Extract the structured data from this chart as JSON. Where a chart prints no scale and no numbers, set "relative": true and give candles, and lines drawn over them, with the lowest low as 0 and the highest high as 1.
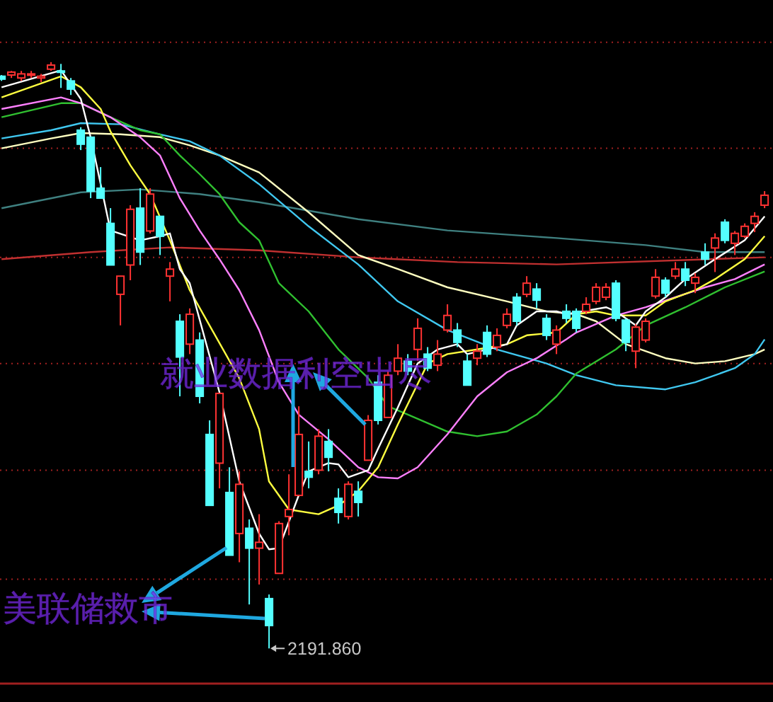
{
  "chart_data": {
    "type": "candlestick",
    "relative": true,
    "categories": [
      null,
      null,
      null,
      null,
      null,
      null,
      null,
      null,
      null,
      null,
      null,
      null,
      null,
      null,
      null,
      null,
      null,
      null,
      null,
      null,
      null,
      null,
      null,
      null,
      null,
      null,
      null,
      null,
      null,
      null,
      null,
      null,
      null,
      null,
      null,
      null,
      null,
      null,
      null,
      null,
      null,
      null,
      null,
      null,
      null,
      null,
      null,
      null,
      null,
      null,
      null,
      null,
      null,
      null,
      null,
      null,
      null,
      null,
      null,
      null,
      null,
      null,
      null,
      null,
      null,
      null,
      null,
      null,
      null,
      null,
      null,
      null,
      null,
      null,
      null,
      null,
      null,
      null
    ],
    "ohlc": [
      [
        0.976,
        0.978,
        0.968,
        0.971
      ],
      [
        0.978,
        0.985,
        0.973,
        0.983
      ],
      [
        0.973,
        0.985,
        0.968,
        0.98
      ],
      [
        0.978,
        0.985,
        0.973,
        0.98
      ],
      [
        0.973,
        0.98,
        0.966,
        0.976
      ],
      [
        0.988,
        1.0,
        0.985,
        0.995
      ],
      [
        0.985,
        0.997,
        0.956,
        0.983
      ],
      [
        0.968,
        0.973,
        0.944,
        0.954
      ],
      [
        0.884,
        0.889,
        0.85,
        0.86
      ],
      [
        0.872,
        0.872,
        0.768,
        0.78
      ],
      [
        0.785,
        0.821,
        0.768,
        0.768
      ],
      [
        0.725,
        0.751,
        0.654,
        0.654
      ],
      [
        0.604,
        0.635,
        0.551,
        0.635
      ],
      [
        0.654,
        0.756,
        0.628,
        0.749
      ],
      [
        0.751,
        0.785,
        0.654,
        0.676
      ],
      [
        0.712,
        0.785,
        0.708,
        0.775
      ],
      [
        0.737,
        0.737,
        0.671,
        0.703
      ],
      [
        0.635,
        0.659,
        0.592,
        0.647
      ],
      [
        0.558,
        0.57,
        0.43,
        0.497
      ],
      [
        0.519,
        0.58,
        0.502,
        0.57
      ],
      [
        0.526,
        0.539,
        0.418,
        0.43
      ],
      [
        0.365,
        0.389,
        0.244,
        0.244
      ],
      [
        0.316,
        0.435,
        0.273,
        0.435
      ],
      [
        0.266,
        0.309,
        0.159,
        0.159
      ],
      [
        0.196,
        0.302,
        0.147,
        0.28
      ],
      [
        0.205,
        0.22,
        0.075,
        0.171
      ],
      [
        0.171,
        0.229,
        0.109,
        0.181
      ],
      [
        0.085,
        0.092,
        0.0,
        0.039
      ],
      [
        0.128,
        0.217,
        0.128,
        0.213
      ],
      [
        0.225,
        0.297,
        0.193,
        0.237
      ],
      [
        0.261,
        0.413,
        0.261,
        0.365
      ],
      [
        0.302,
        0.353,
        0.273,
        0.292
      ],
      [
        0.304,
        0.374,
        0.297,
        0.362
      ],
      [
        0.353,
        0.374,
        0.302,
        0.326
      ],
      [
        0.256,
        0.273,
        0.213,
        0.232
      ],
      [
        0.225,
        0.285,
        0.22,
        0.28
      ],
      [
        0.268,
        0.285,
        0.225,
        0.249
      ],
      [
        0.321,
        0.398,
        0.321,
        0.389
      ],
      [
        0.454,
        0.466,
        0.382,
        0.389
      ],
      [
        0.394,
        0.473,
        0.394,
        0.466
      ],
      [
        0.473,
        0.519,
        0.466,
        0.495
      ],
      [
        0.49,
        0.502,
        0.466,
        0.473
      ],
      [
        0.51,
        0.563,
        0.49,
        0.546
      ],
      [
        0.502,
        0.514,
        0.473,
        0.478
      ],
      [
        0.483,
        0.526,
        0.473,
        0.502
      ],
      [
        0.543,
        0.587,
        0.539,
        0.568
      ],
      [
        0.543,
        0.555,
        0.514,
        0.522
      ],
      [
        0.49,
        0.502,
        0.449,
        0.449
      ],
      [
        0.495,
        0.519,
        0.483,
        0.507
      ],
      [
        0.539,
        0.551,
        0.497,
        0.502
      ],
      [
        0.514,
        0.546,
        0.507,
        0.534
      ],
      [
        0.551,
        0.58,
        0.546,
        0.57
      ],
      [
        0.599,
        0.606,
        0.551,
        0.558
      ],
      [
        0.604,
        0.635,
        0.599,
        0.623
      ],
      [
        0.613,
        0.623,
        0.58,
        0.594
      ],
      [
        0.563,
        0.57,
        0.526,
        0.534
      ],
      [
        0.519,
        0.551,
        0.502,
        0.543
      ],
      [
        0.575,
        0.587,
        0.555,
        0.563
      ],
      [
        0.575,
        0.58,
        0.539,
        0.546
      ],
      [
        0.575,
        0.599,
        0.57,
        0.587
      ],
      [
        0.592,
        0.623,
        0.587,
        0.616
      ],
      [
        0.599,
        0.623,
        0.594,
        0.616
      ],
      [
        0.623,
        0.628,
        0.558,
        0.563
      ],
      [
        0.56,
        0.563,
        0.507,
        0.522
      ],
      [
        0.507,
        0.553,
        0.478,
        0.548
      ],
      [
        0.526,
        0.563,
        0.522,
        0.558
      ],
      [
        0.601,
        0.647,
        0.597,
        0.633
      ],
      [
        0.628,
        0.633,
        0.599,
        0.606
      ],
      [
        0.635,
        0.659,
        0.63,
        0.647
      ],
      [
        0.647,
        0.659,
        0.618,
        0.628
      ],
      [
        0.623,
        0.64,
        0.606,
        0.633
      ],
      [
        0.676,
        0.691,
        0.654,
        0.664
      ],
      [
        0.683,
        0.708,
        0.642,
        0.7
      ],
      [
        0.727,
        0.732,
        0.691,
        0.696
      ],
      [
        0.691,
        0.712,
        0.671,
        0.708
      ],
      [
        0.703,
        0.725,
        0.7,
        0.72
      ],
      [
        0.725,
        0.744,
        0.71,
        0.737
      ],
      [
        0.756,
        0.78,
        0.751,
        0.773
      ]
    ],
    "colors": [
      "#54ffff",
      "#ff3232",
      "#ff3232",
      "#ff3232",
      "#ff3232",
      "#ff3232",
      "#54ffff",
      "#54ffff",
      "#54ffff",
      "#54ffff",
      "#54ffff",
      "#54ffff",
      "#ff3232",
      "#ff3232",
      "#54ffff",
      "#ff3232",
      "#54ffff",
      "#ff3232",
      "#54ffff",
      "#ff3232",
      "#54ffff",
      "#54ffff",
      "#ff3232",
      "#54ffff",
      "#ff3232",
      "#54ffff",
      "#ff3232",
      "#54ffff",
      "#ff3232",
      "#ff3232",
      "#ff3232",
      "#54ffff",
      "#ff3232",
      "#54ffff",
      "#54ffff",
      "#ff3232",
      "#54ffff",
      "#ff3232",
      "#54ffff",
      "#ff3232",
      "#ff3232",
      "#54ffff",
      "#ff3232",
      "#54ffff",
      "#ff3232",
      "#ff3232",
      "#54ffff",
      "#54ffff",
      "#ff3232",
      "#54ffff",
      "#ff3232",
      "#ff3232",
      "#54ffff",
      "#ff3232",
      "#54ffff",
      "#54ffff",
      "#ff3232",
      "#54ffff",
      "#54ffff",
      "#ff3232",
      "#ff3232",
      "#ff3232",
      "#54ffff",
      "#54ffff",
      "#ff3232",
      "#ff3232",
      "#ff3232",
      "#54ffff",
      "#ff3232",
      "#54ffff",
      "#ff3232",
      "#54ffff",
      "#ff3232",
      "#54ffff",
      "#ff3232",
      "#ff3232",
      "#ff3232",
      "#ff3232"
    ],
    "series": [
      {
        "type": "line",
        "color": "#c03030",
        "values": [
          0.664,
          null,
          null,
          null,
          null,
          null,
          null,
          null,
          null,
          0.676,
          null,
          null,
          null,
          null,
          null,
          null,
          null,
          0.684,
          null,
          null,
          null,
          null,
          null,
          null,
          null,
          null,
          0.679,
          null,
          null,
          null,
          null,
          null,
          null,
          null,
          null,
          null,
          0.667,
          null,
          null,
          null,
          null,
          null,
          null,
          null,
          null,
          null,
          0.659,
          null,
          null,
          null,
          null,
          null,
          null,
          null,
          null,
          null,
          0.655,
          null,
          null,
          null,
          null,
          null,
          null,
          null,
          null,
          null,
          null,
          null,
          null,
          null,
          null,
          null,
          null,
          null,
          null,
          null,
          null,
          0.667
        ]
      },
      {
        "type": "line",
        "color": "#3f8080",
        "values": [
          0.751,
          null,
          null,
          null,
          null,
          null,
          null,
          null,
          0.778,
          null,
          null,
          null,
          null,
          null,
          0.783,
          null,
          null,
          null,
          null,
          null,
          0.775,
          null,
          null,
          null,
          null,
          null,
          0.761,
          null,
          null,
          null,
          null,
          null,
          null,
          null,
          null,
          null,
          0.732,
          null,
          null,
          null,
          null,
          null,
          null,
          null,
          null,
          0.713,
          null,
          null,
          null,
          null,
          null,
          null,
          null,
          null,
          null,
          null,
          0.7,
          null,
          null,
          null,
          null,
          null,
          null,
          null,
          null,
          0.688,
          null,
          null,
          null,
          null,
          null,
          0.676,
          null,
          null,
          null,
          null,
          null,
          0.676
        ]
      },
      {
        "type": "line",
        "color": "#ffffc0",
        "values": [
          0.853,
          null,
          null,
          null,
          null,
          0.87,
          null,
          null,
          0.879,
          null,
          null,
          null,
          0.877,
          null,
          null,
          null,
          0.872,
          null,
          null,
          0.858,
          null,
          null,
          0.841,
          null,
          null,
          null,
          0.812,
          null,
          null,
          null,
          null,
          0.744,
          null,
          null,
          null,
          null,
          0.671,
          null,
          null,
          null,
          0.647,
          null,
          null,
          null,
          null,
          0.616,
          null,
          null,
          null,
          null,
          null,
          0.592,
          null,
          null,
          null,
          0.575,
          null,
          null,
          0.57,
          null,
          0.558,
          null,
          null,
          0.519,
          null,
          null,
          null,
          0.495,
          null,
          null,
          0.486,
          null,
          null,
          0.49,
          null,
          null,
          0.502,
          0.51
        ]
      },
      {
        "type": "line",
        "color": "#40c8f0",
        "values": [
          0.87,
          null,
          null,
          null,
          null,
          0.884,
          null,
          null,
          0.896,
          null,
          null,
          null,
          0.894,
          null,
          null,
          null,
          0.877,
          null,
          null,
          0.865,
          null,
          null,
          0.841,
          null,
          null,
          null,
          0.792,
          null,
          null,
          null,
          null,
          0.72,
          null,
          null,
          null,
          null,
          0.655,
          null,
          null,
          null,
          0.592,
          null,
          null,
          null,
          null,
          0.543,
          null,
          null,
          null,
          null,
          0.51,
          null,
          null,
          null,
          null,
          0.486,
          null,
          null,
          0.466,
          null,
          null,
          null,
          0.449,
          null,
          null,
          null,
          null,
          0.442,
          null,
          null,
          0.454,
          null,
          null,
          null,
          0.478,
          null,
          0.502,
          0.527
        ]
      },
      {
        "type": "line",
        "color": "#30c030",
        "values": [
          0.906,
          null,
          null,
          null,
          null,
          null,
          0.93,
          null,
          0.93,
          null,
          null,
          0.906,
          null,
          null,
          0.884,
          null,
          0.877,
          null,
          0.841,
          null,
          0.809,
          null,
          0.775,
          null,
          0.727,
          null,
          0.696,
          null,
          0.623,
          null,
          null,
          0.575,
          null,
          null,
          0.51,
          null,
          null,
          0.461,
          null,
          0.413,
          null,
          0.399,
          null,
          null,
          null,
          0.37,
          null,
          null,
          0.362,
          null,
          null,
          0.37,
          null,
          null,
          0.399,
          null,
          0.43,
          null,
          0.469,
          null,
          null,
          null,
          0.51,
          null,
          null,
          0.551,
          null,
          null,
          null,
          0.582,
          null,
          null,
          null,
          0.616,
          null,
          null,
          null,
          0.643
        ]
      },
      {
        "type": "line",
        "color": "#ff80ff",
        "values": [
          0.92,
          null,
          null,
          null,
          null,
          null,
          0.94,
          null,
          0.93,
          null,
          null,
          0.906,
          null,
          null,
          0.872,
          null,
          0.841,
          null,
          0.768,
          null,
          0.713,
          null,
          0.664,
          null,
          0.611,
          null,
          0.543,
          null,
          0.454,
          null,
          0.399,
          null,
          null,
          0.357,
          null,
          null,
          0.309,
          null,
          0.292,
          null,
          0.29,
          null,
          0.309,
          null,
          null,
          0.365,
          null,
          null,
          0.43,
          null,
          null,
          0.471,
          null,
          null,
          0.495,
          null,
          null,
          0.527,
          0.539,
          null,
          null,
          null,
          0.568,
          null,
          null,
          0.582,
          null,
          null,
          0.599,
          null,
          null,
          0.616,
          null,
          null,
          0.63,
          null,
          null,
          0.655
        ]
      },
      {
        "type": "line",
        "color": "#ffff40",
        "values": [
          0.94,
          null,
          null,
          null,
          null,
          null,
          0.976,
          null,
          0.957,
          null,
          0.92,
          0.882,
          null,
          0.824,
          null,
          0.775,
          null,
          0.696,
          null,
          0.611,
          null,
          0.551,
          null,
          null,
          0.461,
          null,
          0.374,
          0.285,
          null,
          0.237,
          null,
          null,
          0.229,
          null,
          0.244,
          null,
          0.268,
          null,
          0.309,
          null,
          0.382,
          null,
          null,
          0.486,
          null,
          0.502,
          null,
          null,
          0.51,
          null,
          null,
          0.519,
          null,
          0.534,
          null,
          null,
          0.539,
          null,
          0.57,
          null,
          0.575,
          null,
          0.568,
          null,
          null,
          0.568,
          null,
          0.592,
          null,
          null,
          0.611,
          null,
          0.63,
          null,
          null,
          0.664,
          null,
          0.703
        ]
      },
      {
        "type": "line",
        "color": "#ffffff",
        "values": [
          0.957,
          null,
          null,
          null,
          null,
          null,
          0.986,
          null,
          0.937,
          0.872,
          0.792,
          0.713,
          null,
          null,
          0.696,
          null,
          0.703,
          0.708,
          0.647,
          0.623,
          null,
          null,
          0.437,
          null,
          0.285,
          null,
          0.196,
          0.169,
          0.171,
          null,
          0.261,
          0.302,
          null,
          0.316,
          0.314,
          0.292,
          null,
          0.304,
          0.341,
          null,
          0.411,
          null,
          0.486,
          null,
          0.51,
          null,
          0.519,
          0.502,
          null,
          0.51,
          null,
          0.519,
          0.551,
          null,
          0.575,
          null,
          0.575,
          0.57,
          null,
          null,
          null,
          0.582,
          0.575,
          null,
          0.551,
          0.575,
          null,
          0.599,
          null,
          0.63,
          null,
          null,
          0.664,
          null,
          null,
          0.696,
          null,
          0.737
        ]
      }
    ],
    "ref_lines": [
      {
        "axis": "y",
        "value": 1.034,
        "color": "#a02020",
        "line_style": "dotted"
      },
      {
        "axis": "y",
        "value": 0.853,
        "color": "#a02020",
        "line_style": "dotted"
      },
      {
        "axis": "y",
        "value": 0.667,
        "color": "#a02020",
        "line_style": "dotted"
      },
      {
        "axis": "y",
        "value": 0.486,
        "color": "#a02020",
        "line_style": "dotted"
      },
      {
        "axis": "y",
        "value": 0.304,
        "color": "#a02020",
        "line_style": "dotted"
      },
      {
        "axis": "y",
        "value": 0.118,
        "color": "#a02020",
        "line_style": "dotted"
      }
    ],
    "annotations": [
      "就业数据利空出尽",
      "美联储救市",
      "2191.860"
    ]
  }
}
